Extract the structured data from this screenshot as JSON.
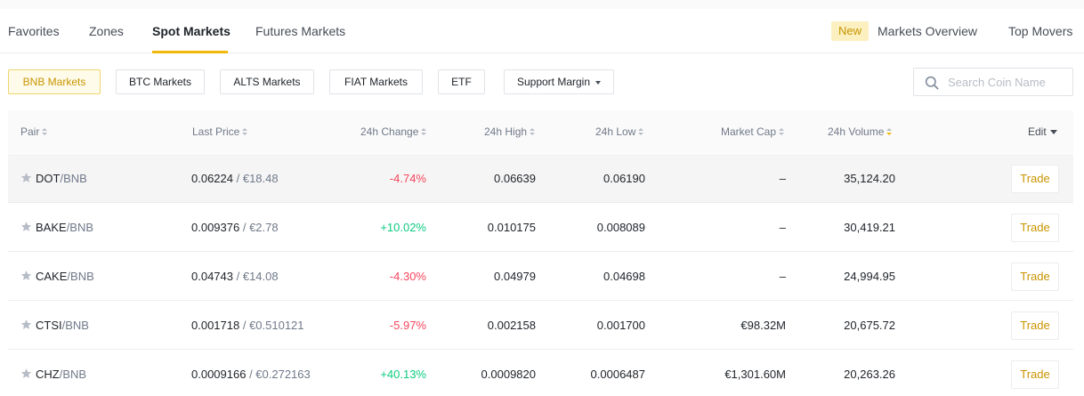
{
  "tabs": {
    "items": [
      "Favorites",
      "Zones",
      "Spot Markets",
      "Futures Markets"
    ],
    "active": "Spot Markets",
    "new_badge": "New",
    "markets_overview": "Markets Overview",
    "top_movers": "Top Movers"
  },
  "filters": {
    "items": [
      "BNB Markets",
      "BTC Markets",
      "ALTS Markets",
      "FIAT Markets",
      "ETF",
      "Support Margin"
    ],
    "active": "BNB Markets",
    "dropdown_icon": "caret-down-icon"
  },
  "search": {
    "placeholder": "Search Coin Name",
    "value": "",
    "icon": "search-icon"
  },
  "table": {
    "headers": {
      "pair": "Pair",
      "last_price": "Last Price",
      "change": "24h Change",
      "high": "24h High",
      "low": "24h Low",
      "market_cap": "Market Cap",
      "volume": "24h Volume",
      "edit": "Edit"
    },
    "sorted_by": "24h Volume",
    "rows": [
      {
        "base": "DOT",
        "quote": "/BNB",
        "price": "0.06224",
        "fiat": " / €18.48",
        "change": "-4.74%",
        "high": "0.06639",
        "low": "0.06190",
        "market_cap": "–",
        "volume": "35,124.20",
        "action": "Trade"
      },
      {
        "base": "BAKE",
        "quote": "/BNB",
        "price": "0.009376",
        "fiat": " / €2.78",
        "change": "+10.02%",
        "high": "0.010175",
        "low": "0.008089",
        "market_cap": "–",
        "volume": "30,419.21",
        "action": "Trade"
      },
      {
        "base": "CAKE",
        "quote": "/BNB",
        "price": "0.04743",
        "fiat": " / €14.08",
        "change": "-4.30%",
        "high": "0.04979",
        "low": "0.04698",
        "market_cap": "–",
        "volume": "24,994.95",
        "action": "Trade"
      },
      {
        "base": "CTSI",
        "quote": "/BNB",
        "price": "0.001718",
        "fiat": " / €0.510121",
        "change": "-5.97%",
        "high": "0.002158",
        "low": "0.001700",
        "market_cap": "€98.32M",
        "volume": "20,675.72",
        "action": "Trade"
      },
      {
        "base": "CHZ",
        "quote": "/BNB",
        "price": "0.0009166",
        "fiat": " / €0.272163",
        "change": "+40.13%",
        "high": "0.0009820",
        "low": "0.0006487",
        "market_cap": "€1,301.60M",
        "volume": "20,263.26",
        "action": "Trade"
      }
    ]
  },
  "colors": {
    "accent": "#f0b90b",
    "negative": "#f6465d",
    "positive": "#0ecb81"
  }
}
